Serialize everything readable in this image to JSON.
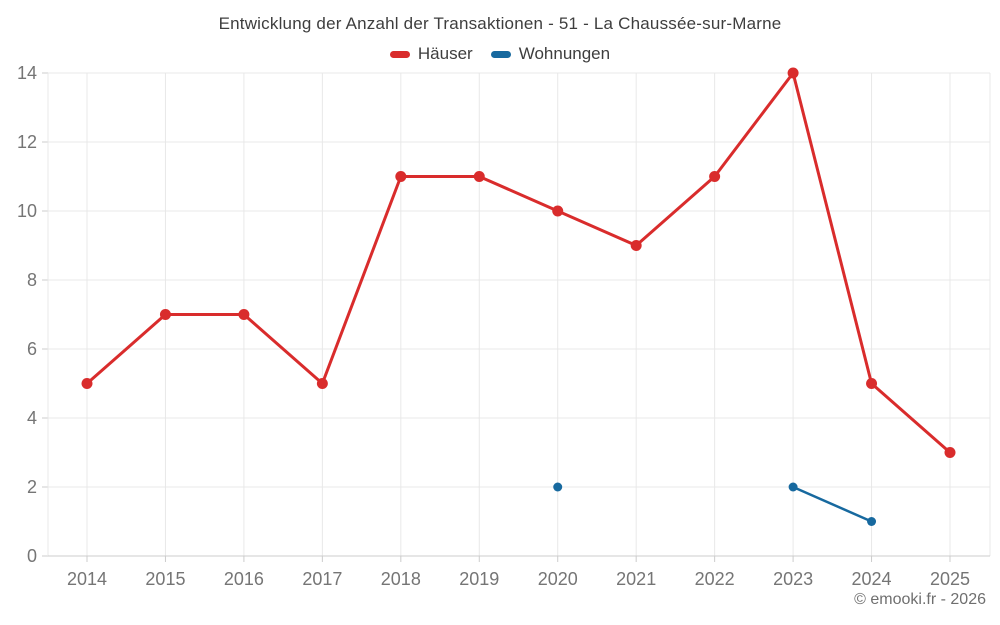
{
  "title": "Entwicklung der Anzahl der Transaktionen - 51 - La Chaussée-sur-Marne",
  "footer": "© emooki.fr - 2026",
  "colors": {
    "haeuser": "#d92c2c",
    "wohnungen": "#17699f",
    "grid": "#e8e8e8",
    "axis": "#cccccc",
    "tick_label": "#757575",
    "title_text": "#3e3e3e"
  },
  "legend": [
    {
      "id": "haeuser",
      "label": "Häuser",
      "color": "#d92c2c"
    },
    {
      "id": "wohnungen",
      "label": "Wohnungen",
      "color": "#17699f"
    }
  ],
  "chart_data": {
    "type": "line",
    "title": "Entwicklung der Anzahl der Transaktionen - 51 - La Chaussée-sur-Marne",
    "x": [
      2014,
      2015,
      2016,
      2017,
      2018,
      2019,
      2020,
      2021,
      2022,
      2023,
      2024,
      2025
    ],
    "series": [
      {
        "id": "haeuser",
        "name": "Häuser",
        "color": "#d92c2c",
        "line_width": 3,
        "marker_radius": 5.5,
        "values": [
          5,
          7,
          7,
          5,
          11,
          11,
          10,
          9,
          11,
          14,
          5,
          3
        ]
      },
      {
        "id": "wohnungen",
        "name": "Wohnungen",
        "color": "#17699f",
        "line_width": 2.5,
        "marker_radius": 4.5,
        "values": [
          null,
          null,
          null,
          null,
          null,
          null,
          2,
          null,
          null,
          2,
          1,
          null
        ]
      }
    ],
    "xlabel": "",
    "ylabel": "",
    "ylim": [
      0,
      14
    ],
    "yticks": [
      0,
      2,
      4,
      6,
      8,
      10,
      12,
      14
    ],
    "grid": true,
    "legend_position": "top"
  }
}
